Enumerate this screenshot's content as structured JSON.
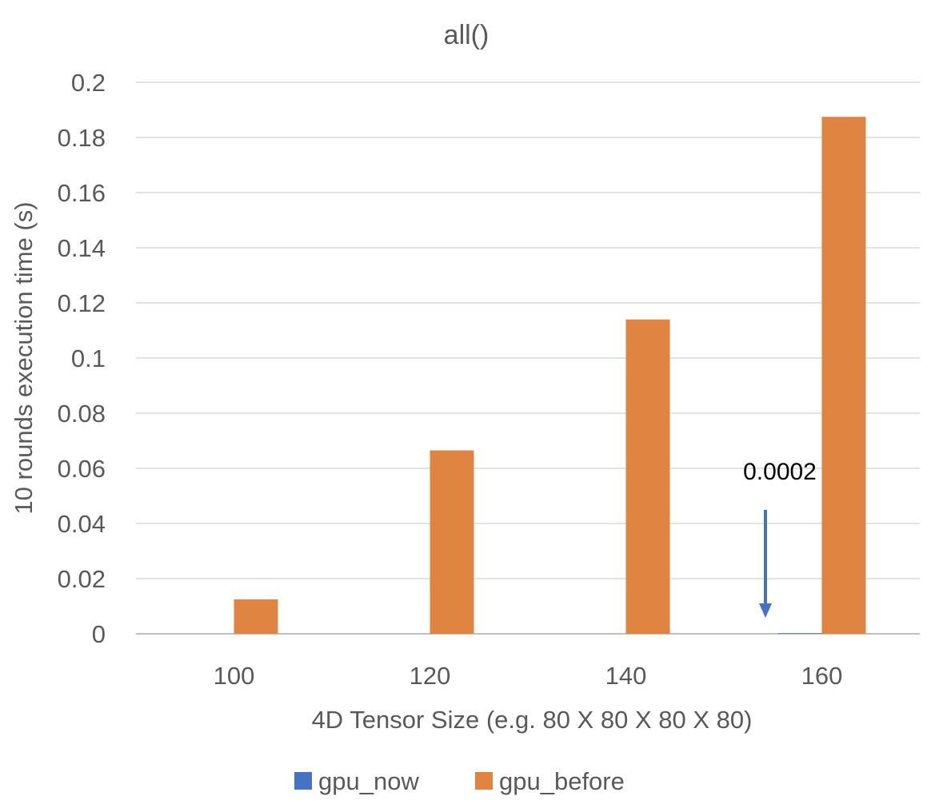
{
  "chart_data": {
    "type": "bar",
    "title": "all()",
    "xlabel": "4D Tensor Size (e.g. 80 X 80 X 80 X 80)",
    "ylabel": "10 rounds execution time (s)",
    "categories": [
      "100",
      "120",
      "140",
      "160"
    ],
    "series": [
      {
        "name": "gpu_now",
        "color": "#4472c4",
        "values": [
          0,
          0,
          0,
          0.0002
        ]
      },
      {
        "name": "gpu_before",
        "color": "#e08442",
        "values": [
          0.0125,
          0.0665,
          0.114,
          0.1875
        ]
      }
    ],
    "ylim": [
      0,
      0.2
    ],
    "yticks": [
      "0",
      "0.02",
      "0.04",
      "0.06",
      "0.08",
      "0.1",
      "0.12",
      "0.14",
      "0.16",
      "0.18",
      "0.2"
    ],
    "grid": true,
    "legend_position": "bottom",
    "annotations": [
      {
        "text": "0.0002",
        "category": "160",
        "series": "gpu_now",
        "arrow": "down",
        "arrow_color": "#4472c4"
      }
    ]
  }
}
